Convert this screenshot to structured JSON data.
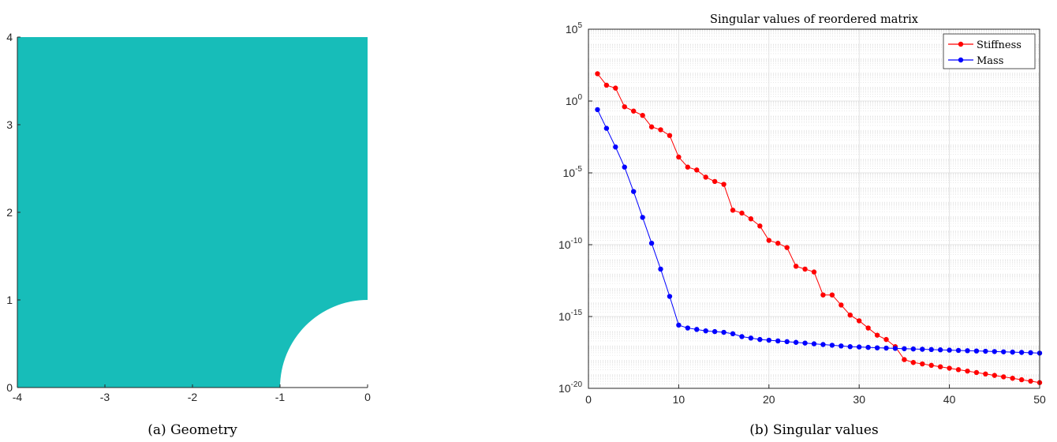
{
  "chart_data": [
    {
      "type": "area",
      "panel": "a",
      "caption": "(a) Geometry",
      "xlim": [
        -4,
        0
      ],
      "ylim": [
        0,
        4
      ],
      "x_ticks": [
        -4,
        -3,
        -2,
        -1,
        0
      ],
      "y_ticks": [
        0,
        1,
        2,
        3,
        4
      ],
      "x_tick_labels": [
        "-4",
        "-3",
        "-2",
        "-1",
        "0"
      ],
      "y_tick_labels": [
        "0",
        "1",
        "2",
        "3",
        "4"
      ],
      "region": {
        "outer_square": [
          [
            -4,
            0
          ],
          [
            0,
            0
          ],
          [
            0,
            4
          ],
          [
            -4,
            4
          ]
        ],
        "hole_circle": {
          "center": [
            0,
            0
          ],
          "radius": 1
        }
      },
      "fill_color": "#17bdb9"
    },
    {
      "type": "line",
      "panel": "b",
      "caption": "(b) Singular values",
      "title": "Singular values of reordered matrix",
      "yscale": "log",
      "xlim": [
        0,
        50
      ],
      "ylim_exponent": [
        -20,
        5
      ],
      "x_ticks": [
        0,
        10,
        20,
        30,
        40,
        50
      ],
      "x_tick_labels": [
        "0",
        "10",
        "20",
        "30",
        "40",
        "50"
      ],
      "y_tick_exponents": [
        5,
        0,
        -5,
        -10,
        -15,
        -20
      ],
      "y_tick_base": "10",
      "grid": true,
      "legend_position": "top-right",
      "series": [
        {
          "name": "Stiffness",
          "color": "#ff0000",
          "x": [
            1,
            2,
            3,
            4,
            5,
            6,
            7,
            8,
            9,
            10,
            11,
            12,
            13,
            14,
            15,
            16,
            17,
            18,
            19,
            20,
            21,
            22,
            23,
            24,
            25,
            26,
            27,
            28,
            29,
            30,
            31,
            32,
            33,
            34,
            35,
            36,
            37,
            38,
            39,
            40,
            41,
            42,
            43,
            44,
            45,
            46,
            47,
            48,
            49,
            50
          ],
          "log10_values": [
            1.9,
            1.1,
            0.9,
            -0.4,
            -0.7,
            -1.0,
            -1.8,
            -2.0,
            -2.4,
            -3.9,
            -4.6,
            -4.8,
            -5.3,
            -5.6,
            -5.8,
            -7.6,
            -7.8,
            -8.2,
            -8.7,
            -9.7,
            -9.9,
            -10.2,
            -11.5,
            -11.7,
            -11.9,
            -13.5,
            -13.5,
            -14.2,
            -14.9,
            -15.3,
            -15.8,
            -16.3,
            -16.6,
            -17.1,
            -18.0,
            -18.2,
            -18.3,
            -18.4,
            -18.5,
            -18.6,
            -18.7,
            -18.8,
            -18.9,
            -19.0,
            -19.1,
            -19.2,
            -19.3,
            -19.4,
            -19.5,
            -19.6
          ]
        },
        {
          "name": "Mass",
          "color": "#0000ff",
          "x": [
            1,
            2,
            3,
            4,
            5,
            6,
            7,
            8,
            9,
            10,
            11,
            12,
            13,
            14,
            15,
            16,
            17,
            18,
            19,
            20,
            21,
            22,
            23,
            24,
            25,
            26,
            27,
            28,
            29,
            30,
            31,
            32,
            33,
            34,
            35,
            36,
            37,
            38,
            39,
            40,
            41,
            42,
            43,
            44,
            45,
            46,
            47,
            48,
            49,
            50
          ],
          "log10_values": [
            -0.6,
            -1.9,
            -3.2,
            -4.6,
            -6.3,
            -8.1,
            -9.9,
            -11.7,
            -13.6,
            -15.6,
            -15.8,
            -15.9,
            -16.0,
            -16.05,
            -16.1,
            -16.2,
            -16.4,
            -16.5,
            -16.6,
            -16.65,
            -16.7,
            -16.75,
            -16.8,
            -16.85,
            -16.9,
            -16.95,
            -17.0,
            -17.05,
            -17.1,
            -17.12,
            -17.15,
            -17.18,
            -17.2,
            -17.22,
            -17.24,
            -17.26,
            -17.28,
            -17.3,
            -17.32,
            -17.34,
            -17.36,
            -17.38,
            -17.4,
            -17.42,
            -17.44,
            -17.46,
            -17.48,
            -17.5,
            -17.52,
            -17.55
          ]
        }
      ]
    }
  ]
}
